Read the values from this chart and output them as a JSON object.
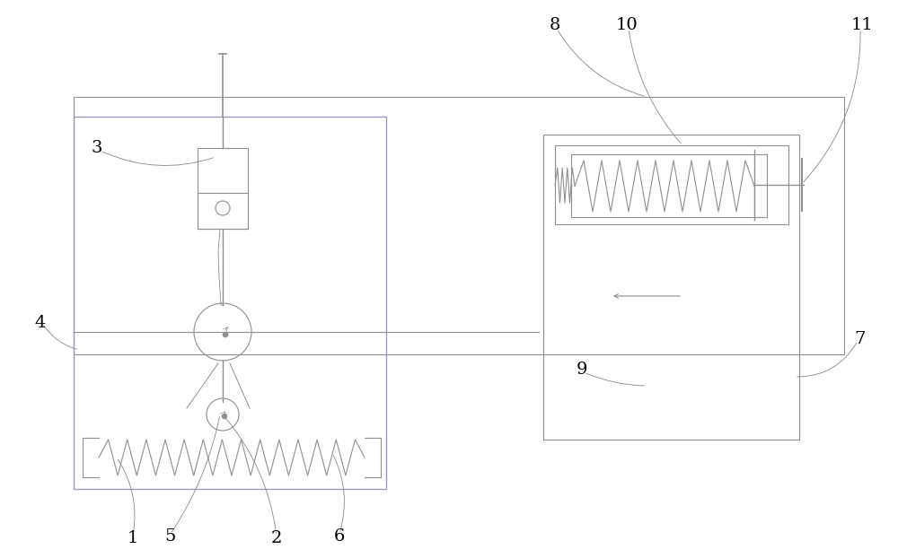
{
  "bg_color": "#ffffff",
  "line_color": "#909090",
  "violet_color": "#9999bb",
  "fig_width": 10.0,
  "fig_height": 6.22,
  "dpi": 100
}
